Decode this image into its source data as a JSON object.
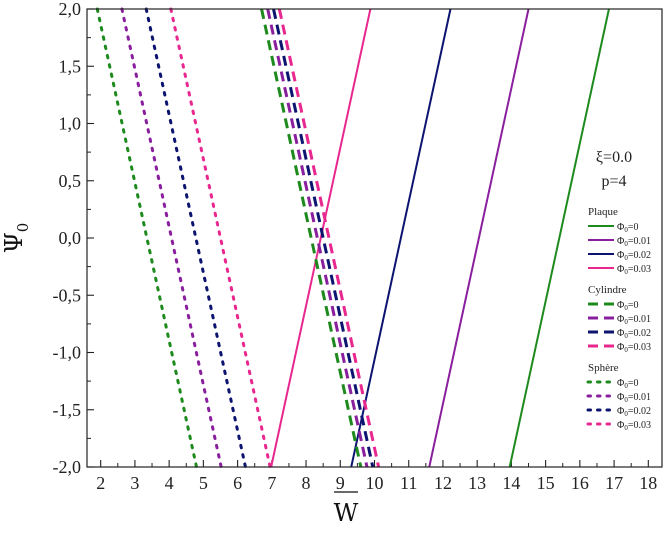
{
  "chart_data": {
    "type": "line",
    "xlabel": "W",
    "ylabel": "Ψ",
    "ylabel_sub": "0",
    "xlim": [
      1.6,
      18.4
    ],
    "ylim": [
      -2.0,
      2.0
    ],
    "xticks": [
      "2",
      "3",
      "4",
      "5",
      "6",
      "7",
      "8",
      "9",
      "10",
      "11",
      "12",
      "13",
      "14",
      "15",
      "16",
      "17",
      "18"
    ],
    "yticks": [
      "-2,0",
      "-1,5",
      "-1,0",
      "-0,5",
      "0,0",
      "0,5",
      "1,0",
      "1,5",
      "2,0"
    ],
    "annotations": [
      "ξ=0.0",
      "p=4"
    ],
    "colors": {
      "green": "#1e8a1e",
      "purple": "#8a1f9e",
      "navy": "#0c1470",
      "pink": "#e8278f"
    },
    "legend": {
      "position": "right",
      "groups": [
        {
          "title": "Plaque",
          "style": "solid",
          "entries": [
            {
              "label": "Φ",
              "sub": "0",
              "suffix": "=0",
              "color": "green"
            },
            {
              "label": "Φ",
              "sub": "0",
              "suffix": "=0.01",
              "color": "purple"
            },
            {
              "label": "Φ",
              "sub": "0",
              "suffix": "=0.02",
              "color": "navy"
            },
            {
              "label": "Φ",
              "sub": "0",
              "suffix": "=0.03",
              "color": "pink"
            }
          ]
        },
        {
          "title": "Cylindre",
          "style": "dashed",
          "entries": [
            {
              "label": "Φ",
              "sub": "0",
              "suffix": "=0",
              "color": "green"
            },
            {
              "label": "Φ",
              "sub": "0",
              "suffix": "=0.01",
              "color": "purple"
            },
            {
              "label": "Φ",
              "sub": "0",
              "suffix": "=0.02",
              "color": "navy"
            },
            {
              "label": "Φ",
              "sub": "0",
              "suffix": "=0.03",
              "color": "pink"
            }
          ]
        },
        {
          "title": "Sphère",
          "style": "dotted",
          "entries": [
            {
              "label": "Φ",
              "sub": "0",
              "suffix": "=0",
              "color": "green"
            },
            {
              "label": "Φ",
              "sub": "0",
              "suffix": "=0.01",
              "color": "purple"
            },
            {
              "label": "Φ",
              "sub": "0",
              "suffix": "=0.02",
              "color": "navy"
            },
            {
              "label": "Φ",
              "sub": "0",
              "suffix": "=0.03",
              "color": "pink"
            }
          ]
        }
      ]
    },
    "series": [
      {
        "group": "Plaque",
        "phi": "0",
        "color": "green",
        "style": "solid",
        "x": [
          13.95,
          16.85
        ],
        "y": [
          -2.0,
          2.0
        ]
      },
      {
        "group": "Plaque",
        "phi": "0.01",
        "color": "purple",
        "style": "solid",
        "x": [
          11.6,
          14.5
        ],
        "y": [
          -2.0,
          2.0
        ]
      },
      {
        "group": "Plaque",
        "phi": "0.02",
        "color": "navy",
        "style": "solid",
        "x": [
          9.32,
          12.22
        ],
        "y": [
          -2.0,
          2.0
        ]
      },
      {
        "group": "Plaque",
        "phi": "0.03",
        "color": "pink",
        "style": "solid",
        "x": [
          6.98,
          9.88
        ],
        "y": [
          -2.0,
          2.0
        ]
      },
      {
        "group": "Cylindre",
        "phi": "0",
        "color": "green",
        "style": "dashed",
        "x": [
          6.7,
          9.6
        ],
        "y": [
          2.0,
          -2.0
        ]
      },
      {
        "group": "Cylindre",
        "phi": "0.01",
        "color": "purple",
        "style": "dashed",
        "x": [
          6.88,
          9.78
        ],
        "y": [
          2.0,
          -2.0
        ]
      },
      {
        "group": "Cylindre",
        "phi": "0.02",
        "color": "navy",
        "style": "dashed",
        "x": [
          7.05,
          9.95
        ],
        "y": [
          2.0,
          -2.0
        ]
      },
      {
        "group": "Cylindre",
        "phi": "0.03",
        "color": "pink",
        "style": "dashed",
        "x": [
          7.22,
          10.12
        ],
        "y": [
          2.0,
          -2.0
        ]
      },
      {
        "group": "Sphère",
        "phi": "0",
        "color": "green",
        "style": "dotted",
        "x": [
          1.9,
          4.8
        ],
        "y": [
          2.0,
          -2.0
        ]
      },
      {
        "group": "Sphère",
        "phi": "0.01",
        "color": "purple",
        "style": "dotted",
        "x": [
          2.62,
          5.52
        ],
        "y": [
          2.0,
          -2.0
        ]
      },
      {
        "group": "Sphère",
        "phi": "0.02",
        "color": "navy",
        "style": "dotted",
        "x": [
          3.33,
          6.23
        ],
        "y": [
          2.0,
          -2.0
        ]
      },
      {
        "group": "Sphère",
        "phi": "0.03",
        "color": "pink",
        "style": "dotted",
        "x": [
          4.05,
          6.95
        ],
        "y": [
          2.0,
          -2.0
        ]
      }
    ]
  }
}
